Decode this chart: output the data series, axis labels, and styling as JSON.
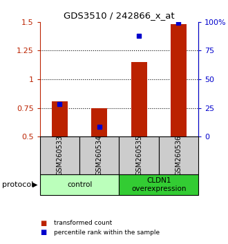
{
  "title": "GDS3510 / 242866_x_at",
  "samples": [
    "GSM260533",
    "GSM260534",
    "GSM260535",
    "GSM260536"
  ],
  "red_values": [
    0.81,
    0.75,
    1.15,
    1.48
  ],
  "blue_values": [
    0.785,
    0.585,
    1.38,
    1.495
  ],
  "ylim_left": [
    0.5,
    1.5
  ],
  "ylim_right": [
    0,
    100
  ],
  "yticks_left": [
    0.5,
    0.75,
    1.0,
    1.25,
    1.5
  ],
  "yticks_right": [
    0,
    25,
    50,
    75,
    100
  ],
  "ytick_labels_left": [
    "0.5",
    "0.75",
    "1",
    "1.25",
    "1.5"
  ],
  "ytick_labels_right": [
    "0",
    "25",
    "50",
    "75",
    "100%"
  ],
  "groups": [
    {
      "label": "control",
      "samples": [
        0,
        1
      ],
      "color": "#bbffbb"
    },
    {
      "label": "CLDN1\noverexpression",
      "samples": [
        2,
        3
      ],
      "color": "#33cc33"
    }
  ],
  "red_color": "#bb2200",
  "blue_color": "#0000cc",
  "bar_width": 0.4,
  "marker_size": 5,
  "bar_bottom": 0.5,
  "protocol_label": "protocol",
  "legend_red": "transformed count",
  "legend_blue": "percentile rank within the sample",
  "bg_color": "#ffffff",
  "sample_box_color": "#cccccc",
  "grid_yticks": [
    0.75,
    1.0,
    1.25
  ]
}
